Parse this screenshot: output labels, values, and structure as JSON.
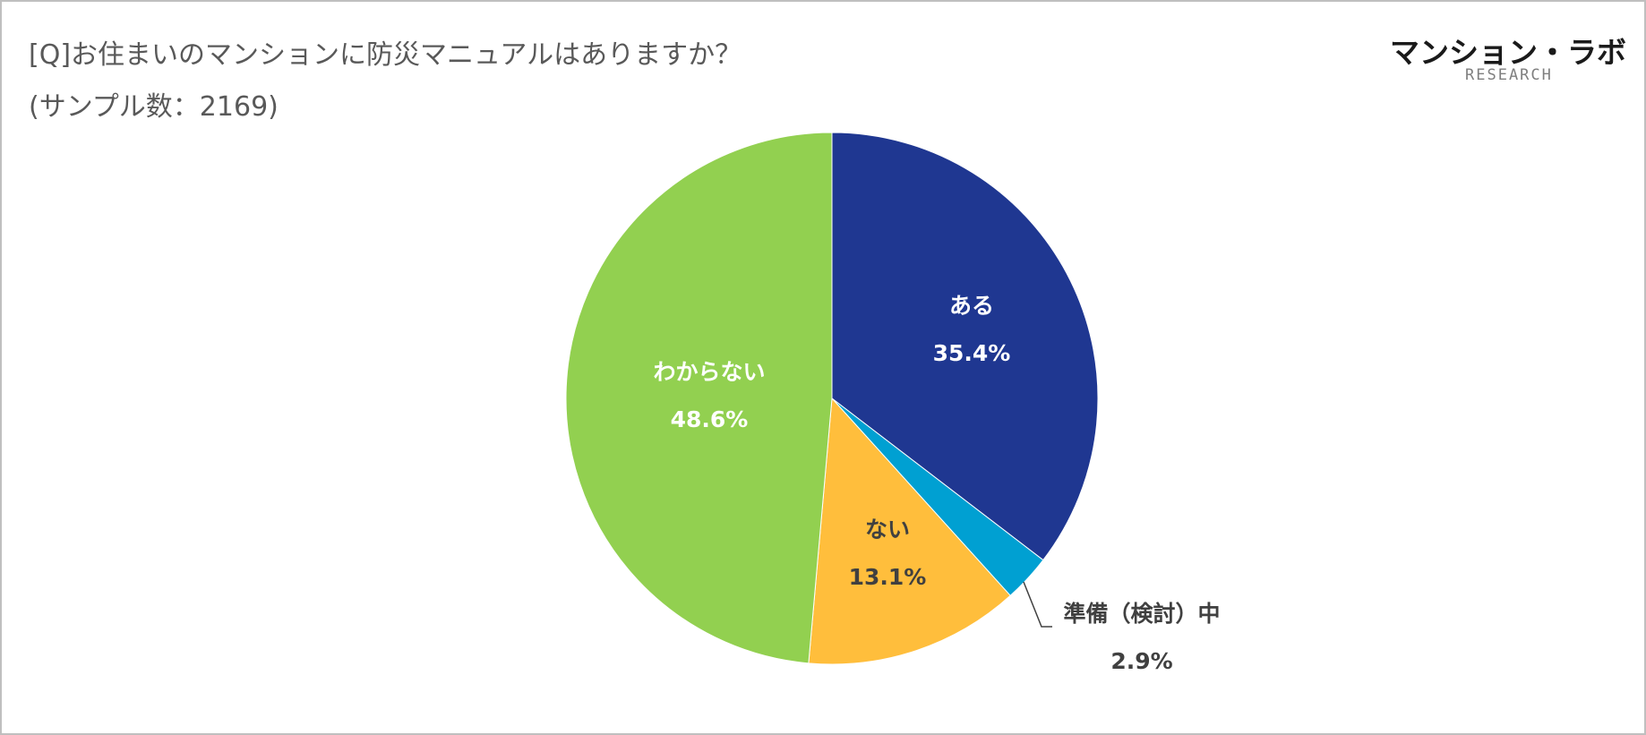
{
  "header": {
    "title": "[Q]お住まいのマンションに防災マニュアルはありますか？",
    "subtitle": "(サンプル数：2169)"
  },
  "logo": {
    "main": "マンション・ラボ",
    "sub": "RESEARCH"
  },
  "chart_data": {
    "type": "pie",
    "title": "[Q]お住まいのマンションに防災マニュアルはありますか？",
    "subtitle": "(サンプル数：2169)",
    "slices": [
      {
        "label": "ある",
        "value": 35.4,
        "value_label": "35.4%",
        "color": "#1f3791",
        "label_color": "#ffffff"
      },
      {
        "label": "準備（検討）中",
        "value": 2.9,
        "value_label": "2.9%",
        "color": "#00a0d2",
        "label_color": "#404040"
      },
      {
        "label": "ない",
        "value": 13.1,
        "value_label": "13.1%",
        "color": "#ffbe3c",
        "label_color": "#404040"
      },
      {
        "label": "わからない",
        "value": 48.6,
        "value_label": "48.6%",
        "color": "#92d050",
        "label_color": "#ffffff"
      }
    ],
    "start_angle": "12 o'clock",
    "direction": "clockwise",
    "legend": "none"
  }
}
